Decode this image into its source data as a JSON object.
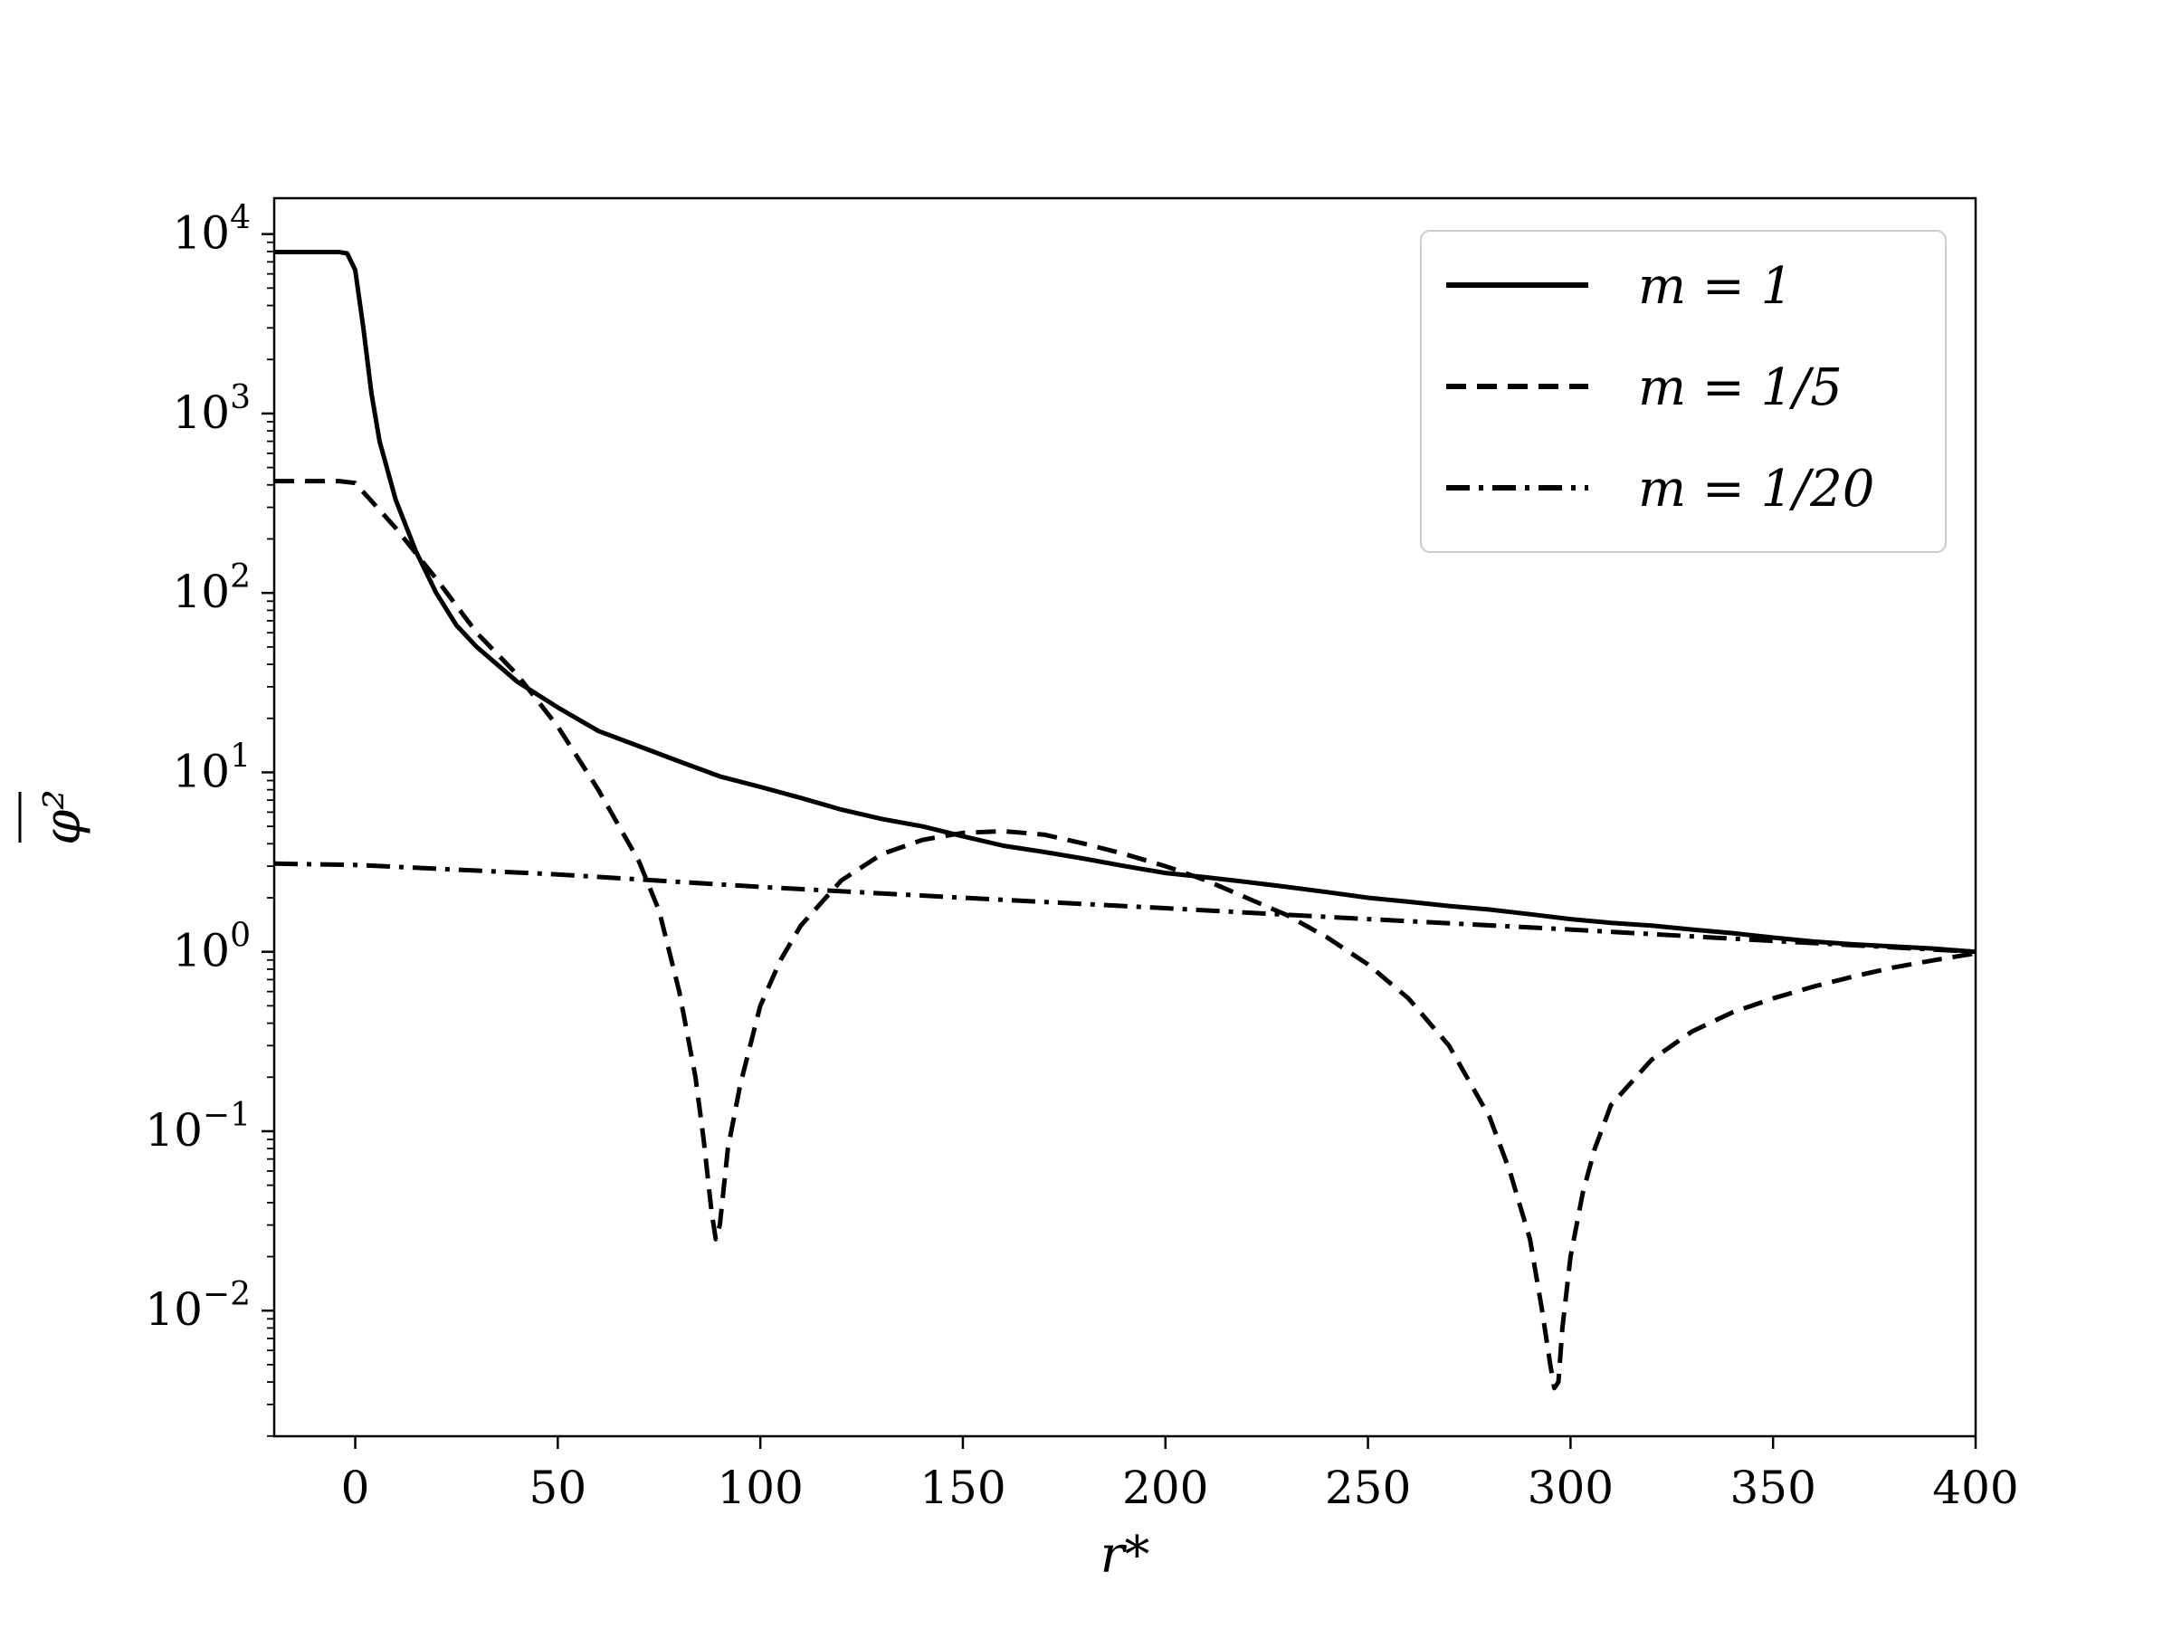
{
  "chart_data": {
    "type": "line",
    "title": "",
    "xlabel": "r*",
    "ylabel": "φ²",
    "xlim": [
      -20,
      400
    ],
    "ylim_log10": [
      -2.7,
      4.2
    ],
    "yscale": "log",
    "grid": false,
    "legend_position": "top-right",
    "x_ticks": [
      0,
      50,
      100,
      150,
      200,
      250,
      300,
      350,
      400
    ],
    "x_tick_labels": [
      "0",
      "50",
      "100",
      "150",
      "200",
      "250",
      "300",
      "350",
      "400"
    ],
    "y_ticks_log10": [
      -2,
      -1,
      0,
      1,
      2,
      3,
      4
    ],
    "y_tick_labels": [
      {
        "base": "10",
        "exp": "−2"
      },
      {
        "base": "10",
        "exp": "−1"
      },
      {
        "base": "10",
        "exp": "0"
      },
      {
        "base": "10",
        "exp": "1"
      },
      {
        "base": "10",
        "exp": "2"
      },
      {
        "base": "10",
        "exp": "3"
      },
      {
        "base": "10",
        "exp": "4"
      }
    ],
    "series": [
      {
        "name": "m = 1",
        "dash": "solid",
        "x": [
          -20,
          -4,
          -2,
          0,
          2,
          4,
          6,
          10,
          15,
          20,
          25,
          30,
          40,
          50,
          60,
          70,
          80,
          90,
          100,
          110,
          120,
          130,
          140,
          150,
          160,
          170,
          180,
          190,
          200,
          210,
          220,
          230,
          240,
          250,
          260,
          270,
          280,
          290,
          300,
          310,
          320,
          330,
          340,
          350,
          360,
          370,
          380,
          390,
          400
        ],
        "y": [
          7943,
          7943,
          7800,
          6300,
          3000,
          1300,
          700,
          330,
          170,
          100,
          66,
          50,
          32,
          23,
          17,
          14,
          11.5,
          9.5,
          8.3,
          7.2,
          6.2,
          5.5,
          5.0,
          4.4,
          3.9,
          3.6,
          3.3,
          3.0,
          2.75,
          2.6,
          2.45,
          2.3,
          2.15,
          2.0,
          1.9,
          1.8,
          1.72,
          1.62,
          1.52,
          1.45,
          1.4,
          1.33,
          1.27,
          1.2,
          1.14,
          1.1,
          1.07,
          1.04,
          1.0
        ]
      },
      {
        "name": "m = 1/5",
        "dash": "dashed",
        "x": [
          -20,
          -4,
          0,
          10,
          20,
          30,
          40,
          50,
          60,
          70,
          75,
          80,
          84,
          86,
          88,
          89,
          90,
          92,
          95,
          100,
          105,
          110,
          120,
          130,
          140,
          150,
          160,
          170,
          180,
          190,
          200,
          210,
          220,
          230,
          240,
          250,
          260,
          270,
          280,
          285,
          290,
          293,
          295,
          296,
          297,
          298,
          300,
          303,
          306,
          310,
          320,
          330,
          340,
          350,
          360,
          370,
          380,
          390,
          400
        ],
        "y": [
          420,
          420,
          410,
          230,
          120,
          60,
          35,
          18,
          8,
          3.2,
          1.7,
          0.6,
          0.2,
          0.09,
          0.035,
          0.025,
          0.03,
          0.08,
          0.18,
          0.5,
          0.9,
          1.4,
          2.5,
          3.5,
          4.2,
          4.6,
          4.7,
          4.5,
          4.0,
          3.5,
          3.0,
          2.5,
          2.0,
          1.6,
          1.2,
          0.85,
          0.55,
          0.3,
          0.12,
          0.06,
          0.025,
          0.01,
          0.005,
          0.0037,
          0.004,
          0.008,
          0.02,
          0.045,
          0.08,
          0.14,
          0.25,
          0.36,
          0.46,
          0.55,
          0.64,
          0.73,
          0.82,
          0.9,
          0.98
        ]
      },
      {
        "name": "m = 1/20",
        "dash": "dashdot",
        "x": [
          -20,
          0,
          50,
          100,
          150,
          200,
          250,
          300,
          350,
          400
        ],
        "y": [
          3.1,
          3.05,
          2.7,
          2.3,
          2.0,
          1.75,
          1.52,
          1.33,
          1.15,
          1.0
        ]
      }
    ]
  }
}
